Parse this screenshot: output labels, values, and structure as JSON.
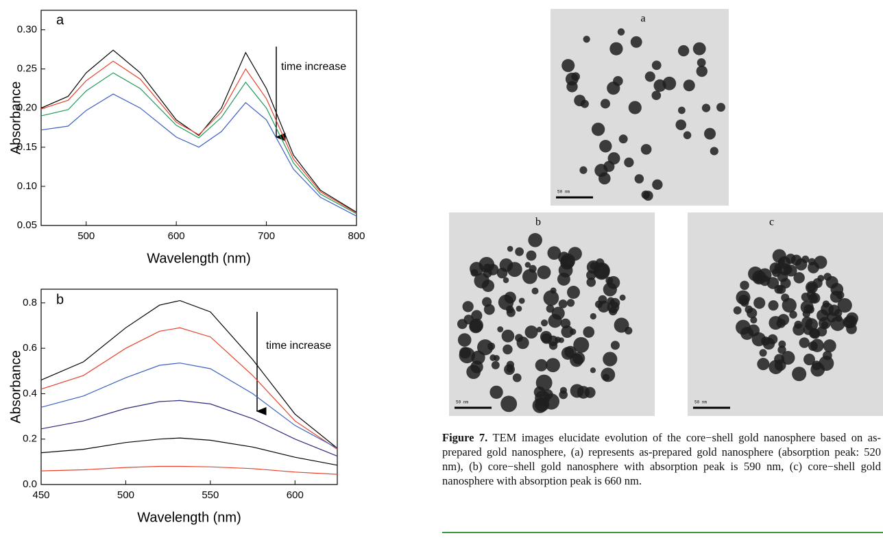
{
  "chart_data": [
    {
      "type": "line",
      "label": "a",
      "x_label": "Wavelength (nm)",
      "y_label": "Absorbance",
      "annotation": "time increase",
      "x": [
        450,
        480,
        500,
        530,
        560,
        600,
        625,
        650,
        677,
        700,
        730,
        760,
        800
      ],
      "xlim": [
        450,
        800
      ],
      "xticks": [
        500,
        600,
        700,
        800
      ],
      "ylim": [
        0.05,
        0.325
      ],
      "yticks": [
        0.05,
        {
          "value": 0.1,
          "label": "0.10"
        },
        0.15,
        {
          "value": 0.2,
          "label": "0.20"
        },
        0.25,
        {
          "value": 0.3,
          "label": "0.30"
        }
      ],
      "series": [
        {
          "color": "#000000",
          "values": [
            0.2,
            0.215,
            0.245,
            0.274,
            0.245,
            0.185,
            0.165,
            0.2,
            0.271,
            0.225,
            0.14,
            0.095,
            0.067
          ]
        },
        {
          "color": "#e8402a",
          "values": [
            0.199,
            0.21,
            0.235,
            0.26,
            0.237,
            0.182,
            0.166,
            0.195,
            0.25,
            0.212,
            0.135,
            0.093,
            0.066
          ]
        },
        {
          "color": "#1f9a5a",
          "values": [
            0.19,
            0.198,
            0.222,
            0.245,
            0.225,
            0.178,
            0.162,
            0.188,
            0.233,
            0.2,
            0.13,
            0.09,
            0.065
          ]
        },
        {
          "color": "#3b5fc0",
          "values": [
            0.172,
            0.177,
            0.197,
            0.218,
            0.2,
            0.163,
            0.15,
            0.17,
            0.207,
            0.185,
            0.122,
            0.086,
            0.062
          ]
        }
      ]
    },
    {
      "type": "line",
      "label": "b",
      "x_label": "Wavelength (nm)",
      "y_label": "Absorbance",
      "annotation": "time increase",
      "x": [
        450,
        475,
        500,
        520,
        532,
        550,
        575,
        600,
        625
      ],
      "xlim": [
        450,
        625
      ],
      "xticks": [
        450,
        500,
        550,
        600
      ],
      "ylim": [
        0,
        0.86
      ],
      "yticks": [
        {
          "value": 0,
          "label": "0.0"
        },
        0.2,
        0.4,
        0.6,
        0.8
      ],
      "series": [
        {
          "color": "#000000",
          "values": [
            0.46,
            0.54,
            0.69,
            0.79,
            0.81,
            0.76,
            0.55,
            0.31,
            0.16
          ]
        },
        {
          "color": "#e8402a",
          "values": [
            0.42,
            0.48,
            0.6,
            0.675,
            0.69,
            0.65,
            0.48,
            0.28,
            0.155
          ]
        },
        {
          "color": "#3b5fc0",
          "values": [
            0.34,
            0.39,
            0.47,
            0.525,
            0.535,
            0.51,
            0.4,
            0.26,
            0.16
          ]
        },
        {
          "color": "#2a2a7a",
          "values": [
            0.245,
            0.28,
            0.335,
            0.365,
            0.37,
            0.355,
            0.29,
            0.2,
            0.125
          ]
        },
        {
          "color": "#000000",
          "values": [
            0.14,
            0.155,
            0.185,
            0.2,
            0.205,
            0.195,
            0.165,
            0.12,
            0.085
          ]
        },
        {
          "color": "#e8402a",
          "values": [
            0.06,
            0.065,
            0.075,
            0.08,
            0.08,
            0.078,
            0.07,
            0.055,
            0.045
          ]
        }
      ]
    }
  ],
  "figure": {
    "panels": [
      {
        "label": "a",
        "scale": "50 nm"
      },
      {
        "label": "b",
        "scale": "50 nm"
      },
      {
        "label": "c",
        "scale": "50 nm"
      }
    ],
    "caption_label": "Figure 7.",
    "caption": "TEM images elucidate evolution of the core−shell gold nanosphere based on as-prepared gold nanosphere, (a) represents as-prepared gold nanosphere (absorption peak: 520 nm), (b) core−shell gold nanosphere with absorption peak is 590 nm, (c) core−shell gold nanosphere with absorption peak is 660 nm."
  }
}
